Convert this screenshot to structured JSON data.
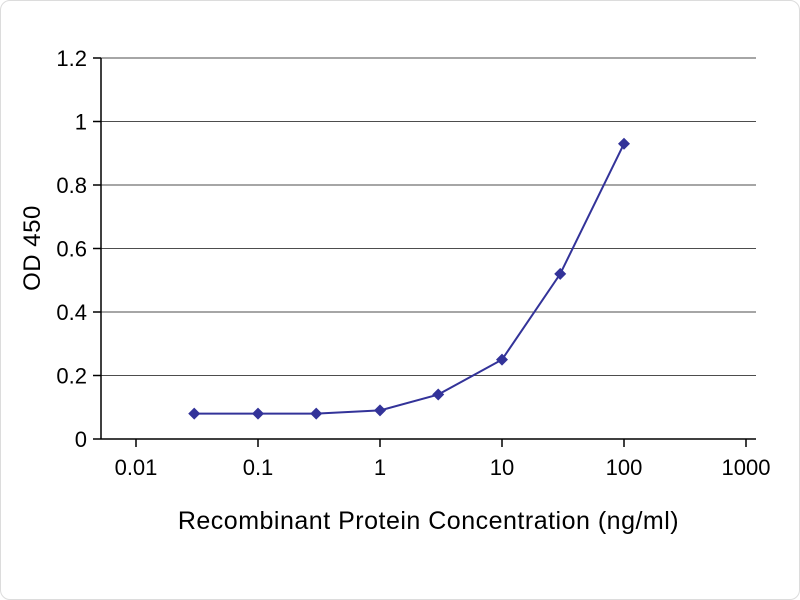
{
  "chart_data": {
    "type": "line",
    "title": "",
    "xlabel": "Recombinant Protein Concentration (ng/ml)",
    "ylabel": "OD 450",
    "x_scale": "log",
    "xlim": [
      0.01,
      1000
    ],
    "ylim": [
      0,
      1.2
    ],
    "x": [
      0.03,
      0.1,
      0.3,
      1,
      3,
      10,
      30,
      100
    ],
    "series": [
      {
        "name": "OD 450",
        "values": [
          0.08,
          0.08,
          0.08,
          0.09,
          0.14,
          0.25,
          0.52,
          0.93
        ]
      }
    ],
    "x_ticks": [
      "0.01",
      "0.1",
      "1",
      "10",
      "100",
      "1000"
    ],
    "x_tick_values": [
      0.01,
      0.1,
      1,
      10,
      100,
      1000
    ],
    "y_ticks": [
      "0",
      "0.2",
      "0.4",
      "0.6",
      "0.8",
      "1",
      "1.2"
    ],
    "y_tick_values": [
      0,
      0.2,
      0.4,
      0.6,
      0.8,
      1,
      1.2
    ],
    "grid": "horizontal",
    "legend": "none",
    "marker": "diamond",
    "line_color": "#333399",
    "grid_color": "#4d4d4d",
    "axis_color": "#000000",
    "text_color": "#000000"
  }
}
